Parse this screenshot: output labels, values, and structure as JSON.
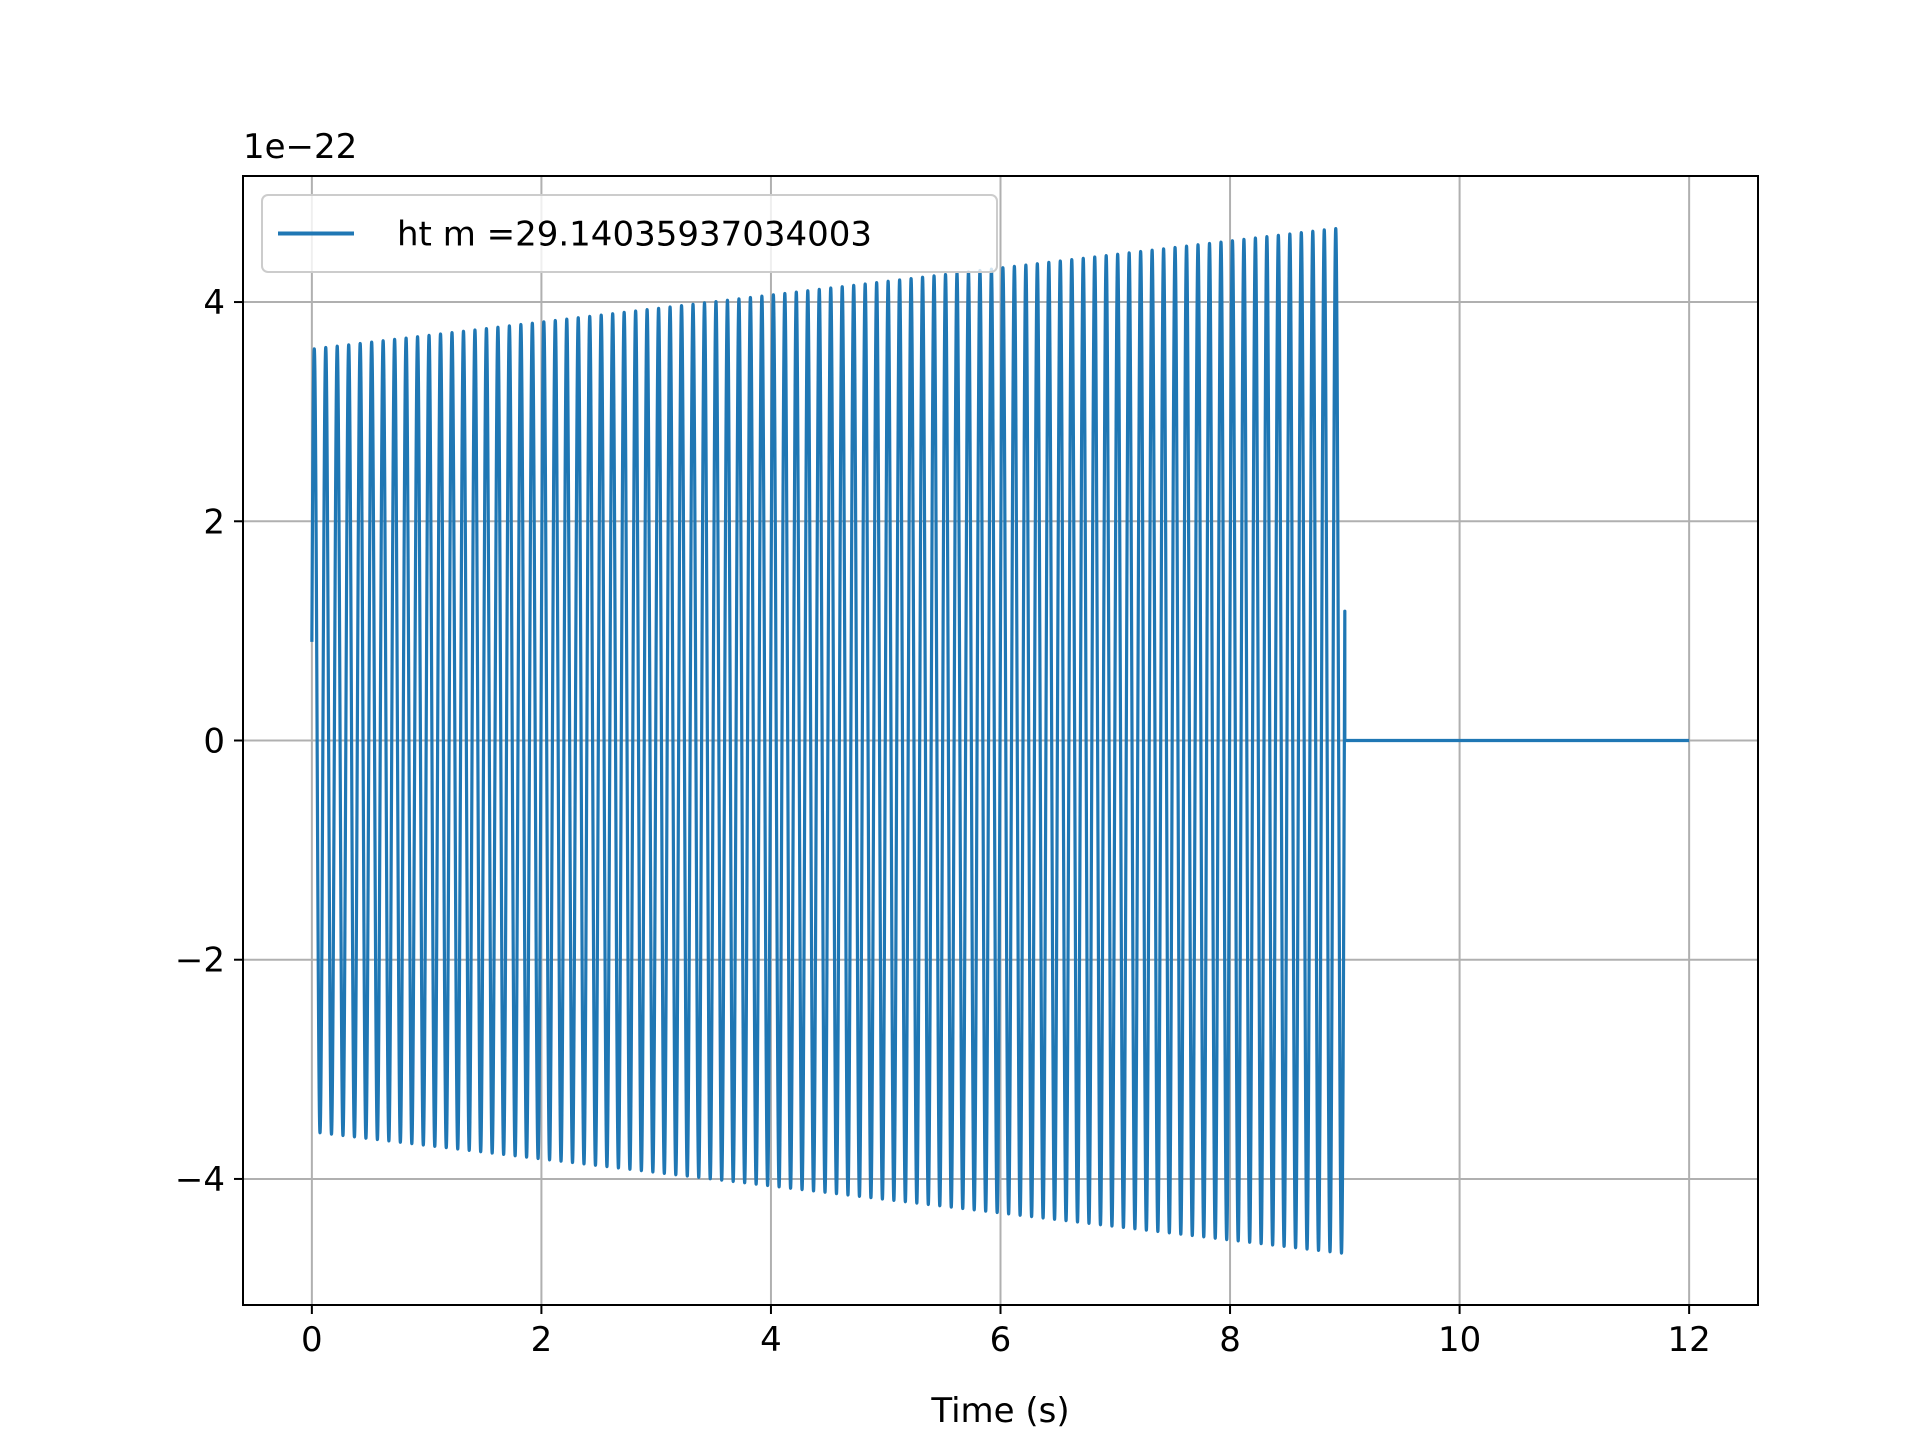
{
  "chart_data": {
    "type": "line",
    "title": "",
    "xlabel": "Time (s)",
    "ylabel": "",
    "offset_text": "1e−22",
    "xlim": [
      -0.6,
      12.6
    ],
    "ylim": [
      -5.15,
      5.15
    ],
    "xticks": [
      0,
      2,
      4,
      6,
      8,
      10,
      12
    ],
    "xtick_labels": [
      "0",
      "2",
      "4",
      "6",
      "8",
      "10",
      "12"
    ],
    "yticks": [
      -4,
      -2,
      0,
      2,
      4
    ],
    "ytick_labels": [
      "−4",
      "−2",
      "0",
      "2",
      "4"
    ],
    "grid": true,
    "legend_position": "upper-left",
    "series": [
      {
        "name": "ht m =29.14035937034003",
        "color": "#1f77b4",
        "signal": {
          "t_start": 0,
          "t_end": 9.0,
          "zero_until": 12.0,
          "cycles": 90,
          "amplitude_start": 3.57,
          "amplitude_end": 4.68,
          "initial_value": 0.9,
          "first_peak": 2.02
        }
      }
    ]
  }
}
